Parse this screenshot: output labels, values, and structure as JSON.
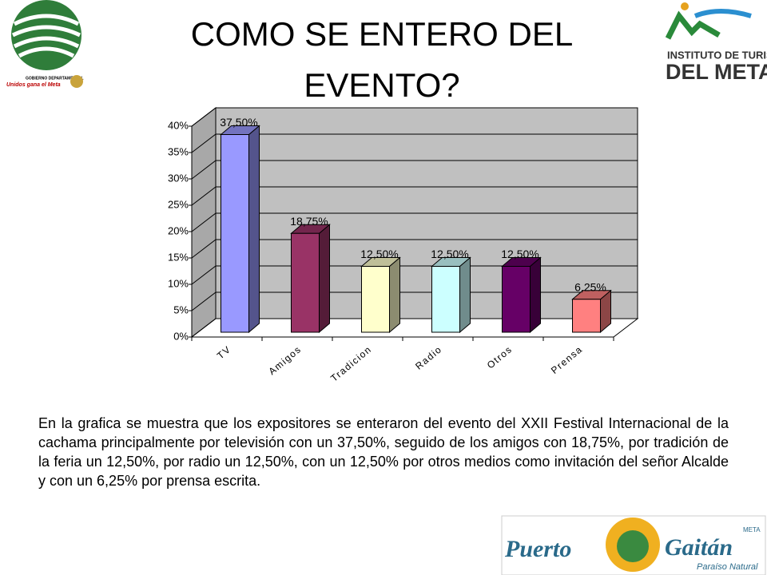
{
  "chart_data": {
    "type": "bar3d",
    "title": "COMO SE ENTERO DEL EVENTO?",
    "categories": [
      "TV",
      "Amigos",
      "Tradicion",
      "Radio",
      "Otros",
      "Prensa"
    ],
    "values": [
      37.5,
      18.75,
      12.5,
      12.5,
      12.5,
      6.25
    ],
    "value_labels": [
      "37,50%",
      "18,75%",
      "12,50%",
      "12,50%",
      "12,50%",
      "6,25%"
    ],
    "colors": [
      "#9999ff",
      "#993366",
      "#ffffcc",
      "#ccffff",
      "#660066",
      "#ff8080"
    ],
    "ylim": [
      0,
      40
    ],
    "yticks": [
      {
        "value": 0,
        "label": "0%"
      },
      {
        "value": 5,
        "label": "5%"
      },
      {
        "value": 10,
        "label": "10%"
      },
      {
        "value": 15,
        "label": "15%"
      },
      {
        "value": 20,
        "label": "20%"
      },
      {
        "value": 25,
        "label": "25%"
      },
      {
        "value": 30,
        "label": "30%"
      },
      {
        "value": 35,
        "label": "35%"
      },
      {
        "value": 40,
        "label": "40%"
      }
    ],
    "grid": true,
    "description": "En la grafica se muestra que los expositores se enteraron del evento del XXII Festival Internacional de la cachama principalmente por televisión con un 37,50%, seguido de los amigos con 18,75%, por tradición de la feria un 12,50%, por radio un 12,50%, con un 12,50% por otros medios como invitación del señor Alcalde y con un 6,25% por prensa escrita."
  },
  "logos": {
    "left": [
      "GOBIERNO DEPARTAMENTAL",
      "Unidos gana el Meta"
    ],
    "right": [
      "INSTITUTO DE TURISMO",
      "DEL META"
    ],
    "bottom": [
      "Puerto",
      "Gaitán",
      "META",
      "Paraíso Natural"
    ]
  }
}
